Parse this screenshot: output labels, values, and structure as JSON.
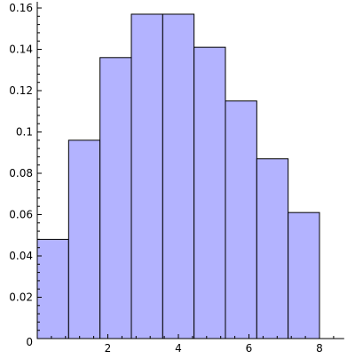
{
  "chart_data": {
    "type": "bar",
    "style": "histogram",
    "bins": [
      {
        "x0": 0.0,
        "x1": 0.889,
        "value": 0.048
      },
      {
        "x0": 0.889,
        "x1": 1.778,
        "value": 0.096
      },
      {
        "x0": 1.778,
        "x1": 2.667,
        "value": 0.136
      },
      {
        "x0": 2.667,
        "x1": 3.556,
        "value": 0.157
      },
      {
        "x0": 3.556,
        "x1": 4.444,
        "value": 0.157
      },
      {
        "x0": 4.444,
        "x1": 5.333,
        "value": 0.141
      },
      {
        "x0": 5.333,
        "x1": 6.222,
        "value": 0.115
      },
      {
        "x0": 6.222,
        "x1": 7.111,
        "value": 0.087
      },
      {
        "x0": 7.111,
        "x1": 8.0,
        "value": 0.061
      }
    ],
    "title": "",
    "xlabel": "",
    "ylabel": "",
    "xlim": [
      0,
      8.7
    ],
    "ylim": [
      0,
      0.16
    ],
    "x_ticks": [
      2,
      4,
      6,
      8
    ],
    "x_tick_labels": [
      "2",
      "4",
      "6",
      "8"
    ],
    "y_ticks": [
      0.02,
      0.04,
      0.06,
      0.08,
      0.1,
      0.12,
      0.14,
      0.16
    ],
    "y_tick_labels": [
      "0.02",
      "0.04",
      "0.06",
      "0.08",
      "0.1",
      "0.12",
      "0.14",
      "0.16"
    ],
    "origin_label": "0",
    "grid": false,
    "legend": "none",
    "bar_fill_color": "#b3b3ff",
    "bar_edge_color": "#000000",
    "axis_color": "#000000"
  }
}
